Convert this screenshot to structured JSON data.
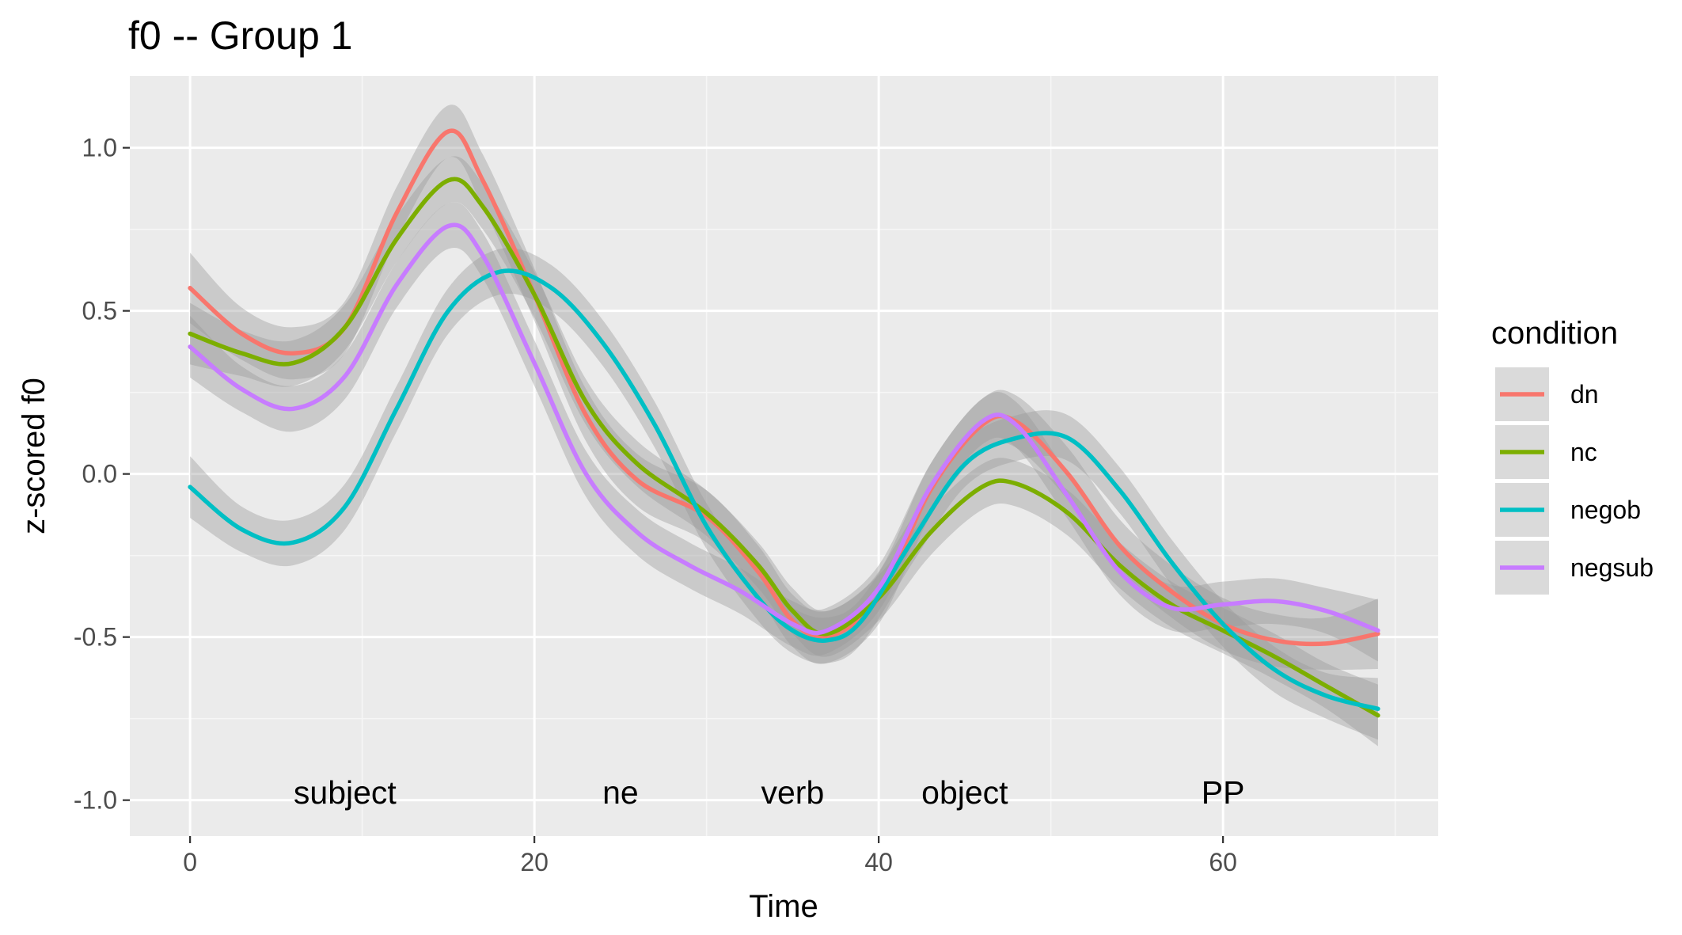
{
  "chart_data": {
    "type": "line",
    "title": "f0 -- Group 1",
    "xlabel": "Time",
    "ylabel": "z-scored f0",
    "xlim": [
      -3.5,
      72.5
    ],
    "ylim": [
      -1.11,
      1.22
    ],
    "xticks": [
      0,
      20,
      40,
      60
    ],
    "xtick_labels": [
      "0",
      "20",
      "40",
      "60"
    ],
    "yticks": [
      -1.0,
      -0.5,
      0.0,
      0.5,
      1.0
    ],
    "ytick_labels": [
      "-1.0",
      "-0.5",
      "0.0",
      "0.5",
      "1.0"
    ],
    "grid": true,
    "legend": {
      "title": "condition",
      "position": "right"
    },
    "annotations": [
      {
        "text": "subject",
        "x": 9,
        "y": -1.01
      },
      {
        "text": "ne",
        "x": 25,
        "y": -1.01
      },
      {
        "text": "verb",
        "x": 35,
        "y": -1.01
      },
      {
        "text": "object",
        "x": 45,
        "y": -1.01
      },
      {
        "text": "PP",
        "x": 60,
        "y": -1.01
      }
    ],
    "series": [
      {
        "name": "dn",
        "color": "#F8766D",
        "points": [
          [
            0,
            0.57
          ],
          [
            3,
            0.43
          ],
          [
            6,
            0.37
          ],
          [
            9,
            0.45
          ],
          [
            12,
            0.8
          ],
          [
            15,
            1.05
          ],
          [
            17,
            0.9
          ],
          [
            20,
            0.55
          ],
          [
            23,
            0.18
          ],
          [
            26,
            -0.02
          ],
          [
            30,
            -0.13
          ],
          [
            33,
            -0.3
          ],
          [
            35,
            -0.45
          ],
          [
            37,
            -0.5
          ],
          [
            40,
            -0.38
          ],
          [
            43,
            -0.05
          ],
          [
            46,
            0.15
          ],
          [
            48,
            0.16
          ],
          [
            51,
            0.0
          ],
          [
            54,
            -0.22
          ],
          [
            57,
            -0.36
          ],
          [
            60,
            -0.46
          ],
          [
            63,
            -0.51
          ],
          [
            66,
            -0.52
          ],
          [
            69,
            -0.49
          ]
        ],
        "ci": 0.08
      },
      {
        "name": "nc",
        "color": "#7CAE00",
        "points": [
          [
            0,
            0.43
          ],
          [
            3,
            0.37
          ],
          [
            6,
            0.34
          ],
          [
            9,
            0.45
          ],
          [
            12,
            0.72
          ],
          [
            15,
            0.9
          ],
          [
            17,
            0.82
          ],
          [
            20,
            0.55
          ],
          [
            23,
            0.22
          ],
          [
            26,
            0.03
          ],
          [
            30,
            -0.12
          ],
          [
            33,
            -0.28
          ],
          [
            35,
            -0.42
          ],
          [
            37,
            -0.49
          ],
          [
            40,
            -0.38
          ],
          [
            43,
            -0.18
          ],
          [
            46,
            -0.04
          ],
          [
            48,
            -0.03
          ],
          [
            51,
            -0.12
          ],
          [
            54,
            -0.28
          ],
          [
            57,
            -0.4
          ],
          [
            60,
            -0.48
          ],
          [
            63,
            -0.56
          ],
          [
            66,
            -0.65
          ],
          [
            69,
            -0.74
          ]
        ],
        "ci": 0.07
      },
      {
        "name": "negob",
        "color": "#00BFC4",
        "points": [
          [
            0,
            -0.04
          ],
          [
            3,
            -0.17
          ],
          [
            6,
            -0.21
          ],
          [
            9,
            -0.1
          ],
          [
            12,
            0.2
          ],
          [
            15,
            0.5
          ],
          [
            18,
            0.62
          ],
          [
            21,
            0.57
          ],
          [
            24,
            0.4
          ],
          [
            27,
            0.15
          ],
          [
            30,
            -0.16
          ],
          [
            33,
            -0.38
          ],
          [
            35,
            -0.48
          ],
          [
            37,
            -0.51
          ],
          [
            39,
            -0.45
          ],
          [
            42,
            -0.2
          ],
          [
            45,
            0.03
          ],
          [
            48,
            0.11
          ],
          [
            51,
            0.11
          ],
          [
            54,
            -0.05
          ],
          [
            57,
            -0.27
          ],
          [
            60,
            -0.46
          ],
          [
            63,
            -0.6
          ],
          [
            66,
            -0.68
          ],
          [
            69,
            -0.72
          ]
        ],
        "ci": 0.07
      },
      {
        "name": "negsub",
        "color": "#C77CFF",
        "points": [
          [
            0,
            0.39
          ],
          [
            3,
            0.26
          ],
          [
            6,
            0.2
          ],
          [
            9,
            0.3
          ],
          [
            12,
            0.58
          ],
          [
            15,
            0.76
          ],
          [
            17,
            0.67
          ],
          [
            20,
            0.34
          ],
          [
            23,
            0.0
          ],
          [
            26,
            -0.18
          ],
          [
            29,
            -0.28
          ],
          [
            32,
            -0.36
          ],
          [
            35,
            -0.46
          ],
          [
            37,
            -0.48
          ],
          [
            40,
            -0.35
          ],
          [
            43,
            -0.04
          ],
          [
            46,
            0.16
          ],
          [
            48,
            0.15
          ],
          [
            51,
            -0.07
          ],
          [
            54,
            -0.3
          ],
          [
            57,
            -0.41
          ],
          [
            60,
            -0.4
          ],
          [
            63,
            -0.39
          ],
          [
            66,
            -0.42
          ],
          [
            69,
            -0.48
          ]
        ],
        "ci": 0.07
      }
    ]
  }
}
